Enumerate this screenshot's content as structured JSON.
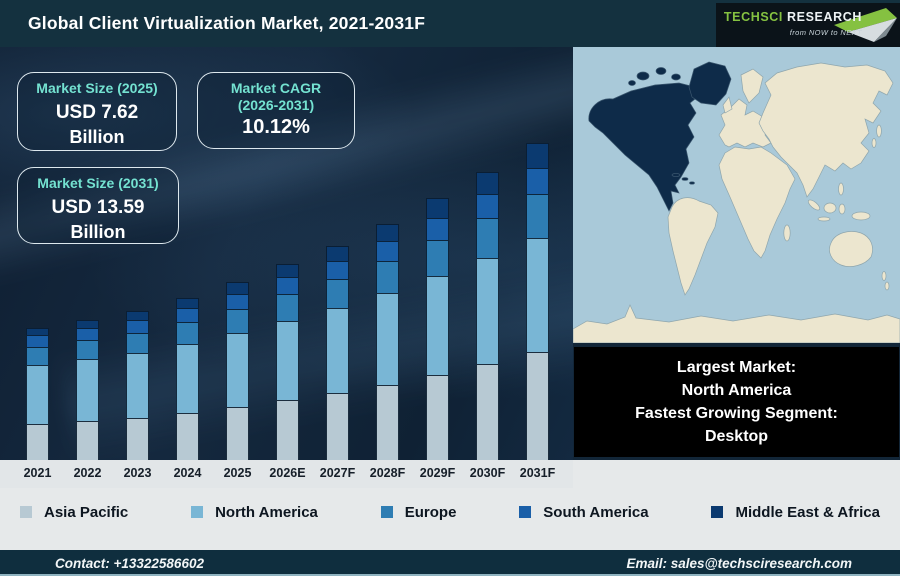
{
  "header": {
    "title": "Global Client Virtualization Market, 2021-2031F",
    "logo": {
      "brand": "TechSci",
      "brand2": "Research",
      "tagline": "from NOW to NEXT"
    }
  },
  "stat_boxes": [
    {
      "label": "Market Size (2025)",
      "value": "USD 7.62",
      "unit": "Billion"
    },
    {
      "label_line1": "Market CAGR",
      "label_line2": "(2026-2031)",
      "value": "10.12%"
    },
    {
      "label": "Market Size (2031)",
      "value": "USD 13.59",
      "unit": "Billion"
    }
  ],
  "info_panel": {
    "lines": [
      "Largest Market:",
      "North America",
      "Fastest Growing Segment:",
      "Desktop"
    ]
  },
  "map": {
    "highlighted_region": "North America"
  },
  "footer": {
    "contact": "Contact: +13322586602",
    "email": "Email: sales@techsciresearch.com"
  },
  "colors": {
    "accent_teal": "#74e2d1",
    "map_ocean": "#a9c9d9",
    "map_land": "#ece6cf",
    "map_highlight": "#0e2b49"
  },
  "chart_data": {
    "type": "bar",
    "stacked": true,
    "title": "Global Client Virtualization Market, 2021-2031F",
    "unit": "USD Billion",
    "grid": false,
    "legend_position": "bottom",
    "categories": [
      "2021",
      "2022",
      "2023",
      "2024",
      "2025",
      "2026E",
      "2027F",
      "2028F",
      "2029F",
      "2030F",
      "2031F"
    ],
    "series": [
      {
        "name": "Asia Pacific",
        "color": "#b7c9d3",
        "values": [
          1.53,
          1.66,
          1.82,
          2.02,
          2.27,
          2.56,
          2.88,
          3.24,
          3.65,
          4.11,
          4.62
        ]
      },
      {
        "name": "North America",
        "color": "#79b6d5",
        "values": [
          2.54,
          2.65,
          2.77,
          2.94,
          3.16,
          3.4,
          3.66,
          3.94,
          4.23,
          4.55,
          4.89
        ]
      },
      {
        "name": "Europe",
        "color": "#2e7db3",
        "values": [
          0.76,
          0.81,
          0.87,
          0.94,
          1.04,
          1.15,
          1.26,
          1.39,
          1.54,
          1.7,
          1.88
        ]
      },
      {
        "name": "South America",
        "color": "#1a5fa8",
        "values": [
          0.5,
          0.53,
          0.56,
          0.6,
          0.66,
          0.72,
          0.79,
          0.86,
          0.94,
          1.03,
          1.13
        ]
      },
      {
        "name": "Middle East & Africa",
        "color": "#0b3a70",
        "values": [
          0.32,
          0.36,
          0.39,
          0.44,
          0.5,
          0.57,
          0.65,
          0.74,
          0.84,
          0.95,
          1.07
        ]
      }
    ],
    "totals": [
      5.65,
      6.01,
      6.41,
      6.94,
      7.63,
      8.4,
      9.24,
      10.17,
      11.2,
      12.34,
      13.59
    ]
  }
}
